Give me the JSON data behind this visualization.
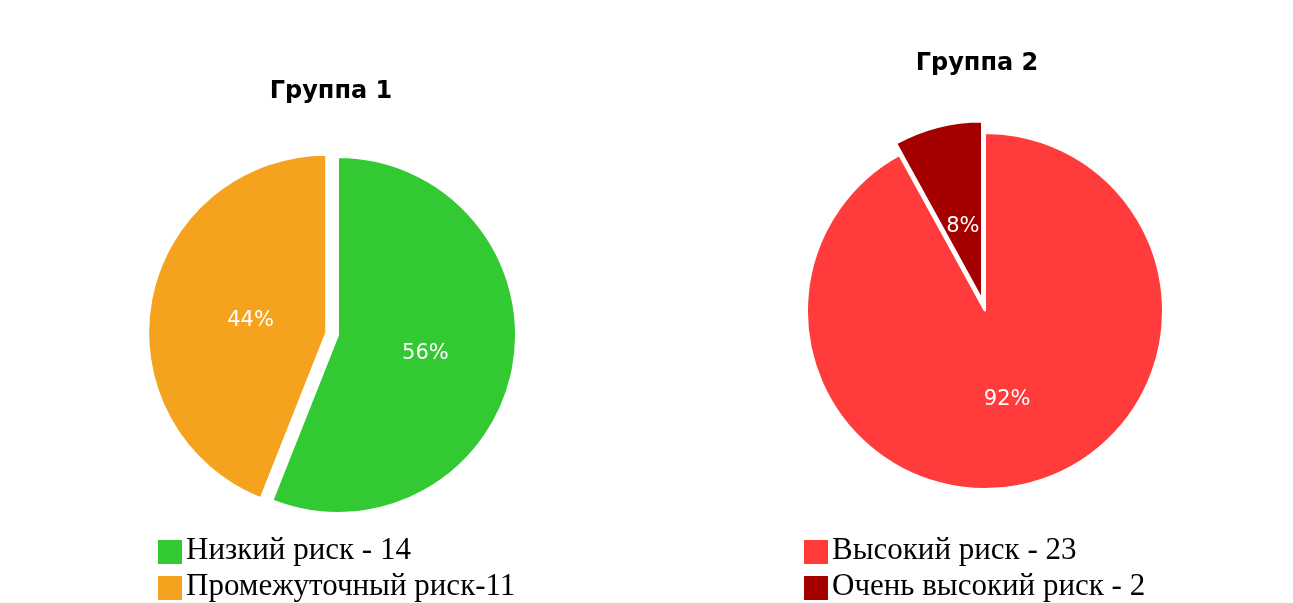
{
  "chart_data": [
    {
      "type": "pie",
      "title": "Группа 1",
      "categories": [
        "Низкий риск - 14",
        "Промежуточный риск-11"
      ],
      "values": [
        56,
        44
      ],
      "value_labels": [
        "56%",
        "44%"
      ],
      "colors": [
        "#33c933",
        "#f5a31e"
      ],
      "legend": "bottom"
    },
    {
      "type": "pie",
      "title": "Группа 2",
      "categories": [
        "Высокий риск - 23",
        "Очень высокий риск - 2"
      ],
      "values": [
        92,
        8
      ],
      "value_labels": [
        "92%",
        "8%"
      ],
      "colors": [
        "#ff3b3b",
        "#a50000"
      ],
      "legend": "bottom"
    }
  ]
}
